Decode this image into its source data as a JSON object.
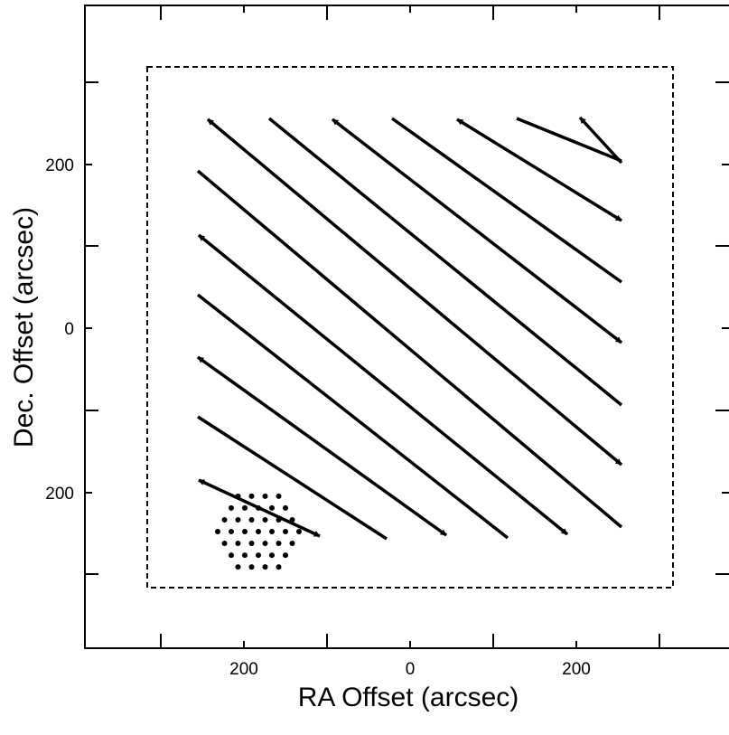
{
  "figure": {
    "x_axis_title": "RA Offset (arcsec)",
    "y_axis_title": "Dec. Offset (arcsec)",
    "x_tick_labels": [
      "200",
      "0",
      "200"
    ],
    "y_tick_labels": [
      "200",
      "0",
      "200"
    ]
  },
  "colors": {
    "ink": "#000000",
    "background": "#ffffff"
  }
}
